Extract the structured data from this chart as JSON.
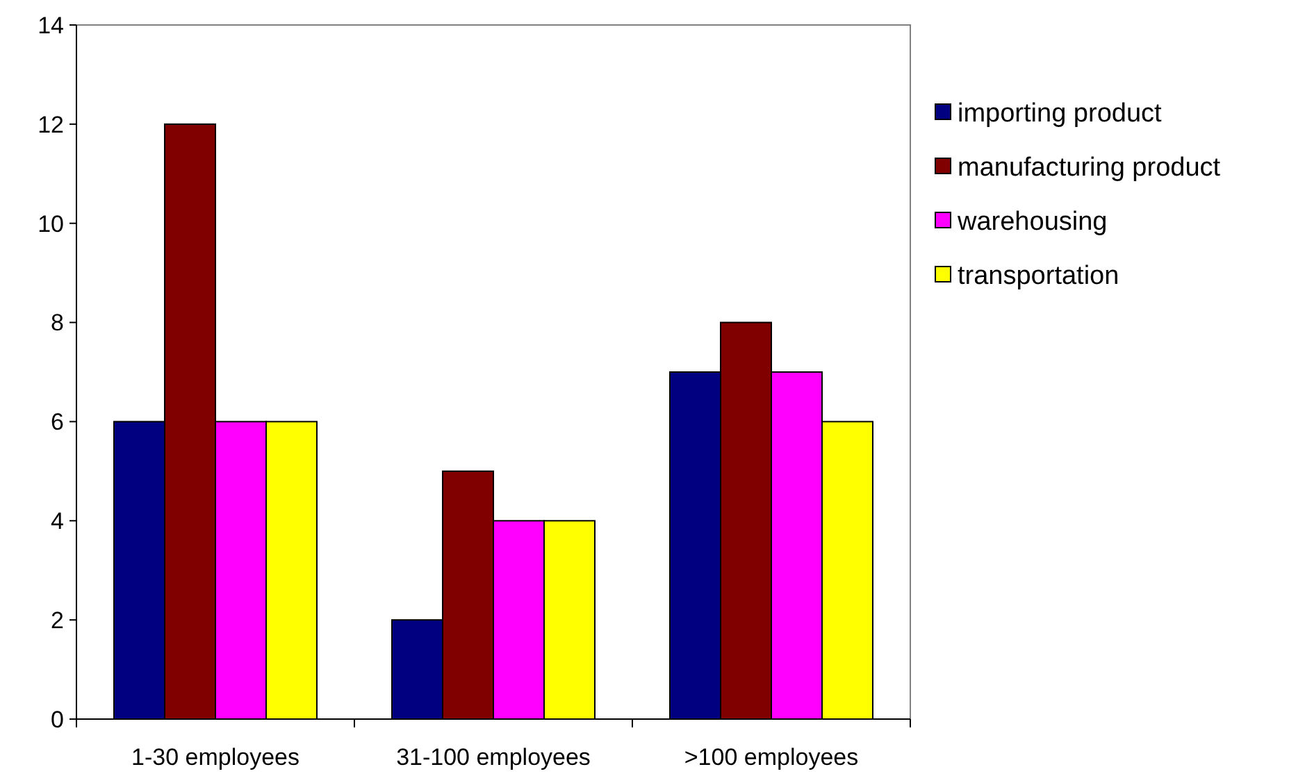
{
  "chart_data": {
    "type": "bar",
    "categories": [
      "1-30 employees",
      "31-100 employees",
      ">100 employees"
    ],
    "series": [
      {
        "name": "importing product",
        "color": "#000080",
        "values": [
          6,
          2,
          7
        ]
      },
      {
        "name": "manufacturing product",
        "color": "#800000",
        "values": [
          12,
          5,
          8
        ]
      },
      {
        "name": "warehousing",
        "color": "#ff00ff",
        "values": [
          6,
          4,
          7
        ]
      },
      {
        "name": "transportation",
        "color": "#ffff00",
        "values": [
          6,
          4,
          6
        ]
      }
    ],
    "ylim": [
      0,
      14
    ],
    "yticks": [
      0,
      2,
      4,
      6,
      8,
      10,
      12,
      14
    ],
    "grid": false,
    "legend": "right"
  }
}
